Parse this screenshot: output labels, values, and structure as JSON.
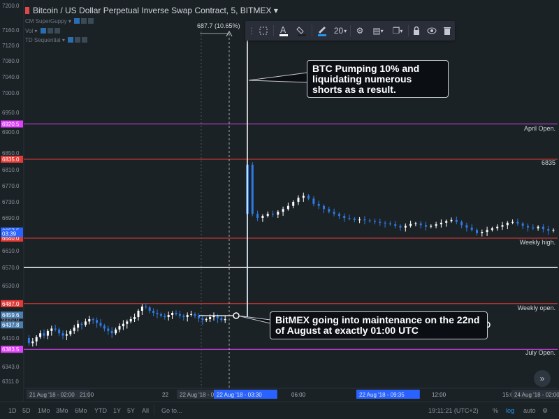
{
  "header": {
    "title": "Bitcoin / US Dollar Perpetual Inverse Swap Contract, 5, BITMEX",
    "indicators": [
      {
        "name": "CM SuperGuppy"
      },
      {
        "name": "Vol"
      },
      {
        "name": "TD Sequential"
      }
    ]
  },
  "toolbar": {
    "line_width": "20",
    "items": [
      "frame-icon",
      "text-color-icon",
      "fill-icon",
      "pencil-icon",
      "line-width",
      "settings-icon",
      "template-icon",
      "clone-icon",
      "lock-icon",
      "visibility-icon",
      "trash-icon"
    ]
  },
  "measurement": {
    "label": "687.7 (10.65%)"
  },
  "callouts": {
    "pump": "BTC Pumping 10% and liquidating numerous shorts as a result.",
    "maintenance": "BitMEX going into maintenance on the 22nd of August at exactly 01:00 UTC"
  },
  "hlines": [
    {
      "label": "April Open.",
      "price": 6920.5,
      "color": "#e040fb",
      "tag": "6920.5"
    },
    {
      "label": "6835",
      "price": 6835,
      "color": "#e53935",
      "tag": "6835.0"
    },
    {
      "label": "Weekly high.",
      "price": 6640,
      "color": "#e53935",
      "tag": "6640.0"
    },
    {
      "label": "Weekly open.",
      "price": 6487,
      "color": "#e53935",
      "tag": "6487.0"
    },
    {
      "label": "July Open.",
      "price": 6383.5,
      "color": "#e040fb",
      "tag": "6383.5"
    }
  ],
  "white_hline_price": 6570,
  "price_tags": [
    {
      "text": "6657.5",
      "price": 6657.5,
      "color": "#2962ff"
    },
    {
      "text": "03:39",
      "price": 6651,
      "color": "#2962ff"
    },
    {
      "text": "6459.6",
      "price": 6459.6,
      "color": "#4a7db0"
    },
    {
      "text": "6437.8",
      "price": 6437.8,
      "color": "#4a7db0"
    }
  ],
  "chart_data": {
    "type": "candlestick",
    "yaxis": {
      "ticks": [
        "7200.0",
        "7160.0",
        "7120.0",
        "7080.0",
        "7040.0",
        "7000.0",
        "6950.0",
        "6900.0",
        "6850.0",
        "6810.0",
        "6770.0",
        "6730.0",
        "6690.0",
        "6650.0",
        "6610.0",
        "6570.0",
        "6530.0",
        "6490.0",
        "6450.0",
        "6410.0",
        "6343.0",
        "6311.0"
      ],
      "range": [
        6300,
        7210
      ]
    },
    "xaxis": {
      "ticks": [
        "21 Aug '18 - 02:00",
        "21:00",
        "22",
        "22 Aug '18 - 02:00",
        "22 Aug '18 - 03:30",
        "06:00",
        "22 Aug '18 - 09:35",
        "12:00",
        "15:00",
        "24 Aug '18 - 02:00"
      ]
    },
    "pre_gap_series": [
      6410,
      6398,
      6402,
      6412,
      6420,
      6415,
      6425,
      6430,
      6428,
      6420,
      6415,
      6418,
      6425,
      6432,
      6440,
      6438,
      6445,
      6450,
      6448,
      6442,
      6436,
      6430,
      6425,
      6420,
      6428,
      6435,
      6440,
      6445,
      6450,
      6455,
      6470,
      6480,
      6478,
      6470,
      6465,
      6462,
      6458,
      6455,
      6460,
      6465,
      6462,
      6458,
      6455,
      6460,
      6462,
      6458,
      6452,
      6448,
      6450,
      6455,
      6458,
      6452,
      6448,
      6450
    ],
    "post_gap_series": [
      6822,
      6700,
      6690,
      6695,
      6700,
      6698,
      6705,
      6712,
      6720,
      6730,
      6740,
      6745,
      6738,
      6725,
      6720,
      6712,
      6705,
      6700,
      6695,
      6690,
      6688,
      6685,
      6686,
      6684,
      6682,
      6680,
      6678,
      6676,
      6674,
      6670,
      6666,
      6670,
      6675,
      6676,
      6672,
      6668,
      6670,
      6674,
      6678,
      6682,
      6685,
      6680,
      6672,
      6666,
      6660,
      6652,
      6655,
      6660,
      6664,
      6668,
      6672,
      6678,
      6680,
      6676,
      6670,
      6666,
      6664,
      6668,
      6662,
      6658,
      6660
    ]
  },
  "bottombar": {
    "timeframes": [
      "1D",
      "5D",
      "1Mo",
      "3Mo",
      "6Mo",
      "YTD",
      "1Y",
      "5Y",
      "All"
    ],
    "goto": "Go to...",
    "clock": "19:11:21 (UTC+2)",
    "percent": "%",
    "log": "log",
    "auto": "auto"
  }
}
